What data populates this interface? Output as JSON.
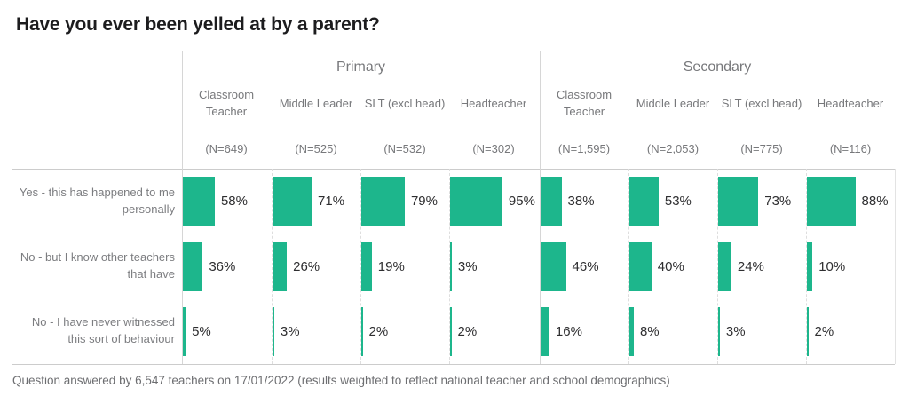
{
  "title": "Have you ever been yelled at by a parent?",
  "footer": "Question answered by 6,547 teachers on 17/01/2022 (results weighted to reflect national teacher and school demographics)",
  "chart_data": {
    "type": "bar",
    "orientation": "horizontal",
    "value_suffix": "%",
    "bar_color": "#1db68c",
    "axis_max": 100,
    "groups": [
      {
        "label": "Primary",
        "columns": [
          {
            "role": "Classroom Teacher",
            "n": "(N=649)"
          },
          {
            "role": "Middle Leader",
            "n": "(N=525)"
          },
          {
            "role": "SLT (excl head)",
            "n": "(N=532)"
          },
          {
            "role": "Headteacher",
            "n": "(N=302)"
          }
        ]
      },
      {
        "label": "Secondary",
        "columns": [
          {
            "role": "Classroom Teacher",
            "n": "(N=1,595)"
          },
          {
            "role": "Middle Leader",
            "n": "(N=2,053)"
          },
          {
            "role": "SLT (excl head)",
            "n": "(N=775)"
          },
          {
            "role": "Headteacher",
            "n": "(N=116)"
          }
        ]
      }
    ],
    "rows": [
      {
        "label": "Yes - this has happened to me personally",
        "values": [
          58,
          71,
          79,
          95,
          38,
          53,
          73,
          88
        ]
      },
      {
        "label": "No - but I know other teachers that have",
        "values": [
          36,
          26,
          19,
          3,
          46,
          40,
          24,
          10
        ]
      },
      {
        "label": "No - I have never witnessed this sort of behaviour",
        "values": [
          5,
          3,
          2,
          2,
          16,
          8,
          3,
          2
        ]
      }
    ]
  }
}
